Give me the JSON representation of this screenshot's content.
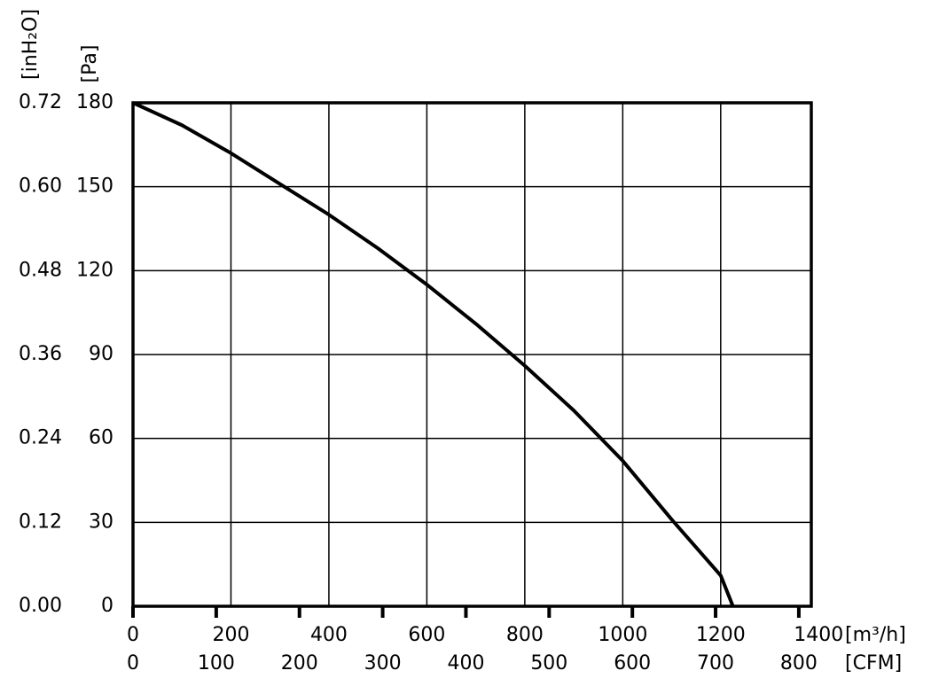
{
  "chart_data": {
    "type": "line",
    "x_label": "[m³/h]",
    "x2_label": "[CFM]",
    "y_label": "[Pa]",
    "y2_label": "[inH₂O]",
    "series": [
      {
        "name": "curve",
        "color": "#000000",
        "x": [
          0,
          100,
          200,
          300,
          400,
          500,
          600,
          700,
          800,
          900,
          1000,
          1100,
          1200,
          1225
        ],
        "values": [
          180,
          172,
          162,
          151,
          140,
          128,
          115,
          101,
          86,
          70,
          52,
          31,
          11,
          0
        ]
      }
    ],
    "xlim": [
      0,
      1385
    ],
    "xticks": [
      0,
      200,
      400,
      600,
      800,
      1000,
      1200,
      1400
    ],
    "x2lim": [
      0,
      815
    ],
    "x2ticks": [
      0,
      100,
      200,
      300,
      400,
      500,
      600,
      700,
      800
    ],
    "ylim": [
      0,
      180
    ],
    "yticks": [
      0,
      30,
      60,
      90,
      120,
      150,
      180
    ],
    "y2lim": [
      0,
      0.72
    ],
    "y2ticks": [
      {
        "value": 0,
        "label": "0.00"
      },
      0.12,
      0.24,
      0.36,
      0.48,
      {
        "value": 0.6,
        "label": "0.60"
      },
      0.72
    ],
    "grid": true
  }
}
